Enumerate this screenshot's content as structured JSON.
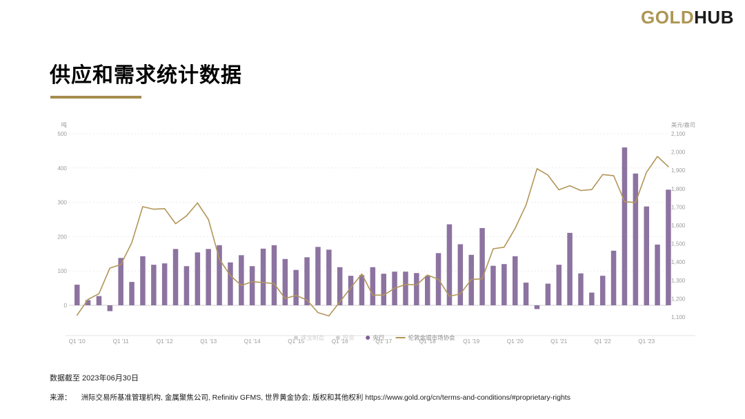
{
  "header": {
    "logo_gold": "GOLD",
    "logo_black": "HUB"
  },
  "title": "供应和需求统计数据",
  "footer": {
    "data_as_of": "数据截至 2023年06月30日",
    "source_label": "来源：",
    "source_text": "洲际交易所基准管理机构, 金属聚焦公司, Refinitiv GFMS, 世界黄金协会; 版权和其他权利 https://www.gold.org/cn/terms-and-conditions/#proprietary-rights"
  },
  "chart_data": {
    "type": "bar+line",
    "x_tick_labels": [
      {
        "index": 0,
        "label": "Q1 '10"
      },
      {
        "index": 4,
        "label": "Q1 '11"
      },
      {
        "index": 8,
        "label": "Q1 '12"
      },
      {
        "index": 12,
        "label": "Q1 '13"
      },
      {
        "index": 16,
        "label": "Q1 '14"
      },
      {
        "index": 20,
        "label": "Q1 '15"
      },
      {
        "index": 24,
        "label": "Q1 '16"
      },
      {
        "index": 28,
        "label": "Q1 '17"
      },
      {
        "index": 32,
        "label": "Q1 '18"
      },
      {
        "index": 36,
        "label": "Q1 '19"
      },
      {
        "index": 40,
        "label": "Q1 '20"
      },
      {
        "index": 44,
        "label": "Q1 '21"
      },
      {
        "index": 48,
        "label": "Q1 '22"
      },
      {
        "index": 52,
        "label": "Q1 '23"
      }
    ],
    "bar_series": {
      "name": "央行",
      "unit": "吨",
      "color": "#8C73A0",
      "values": [
        60,
        15,
        27,
        -17,
        138,
        68,
        143,
        118,
        122,
        164,
        114,
        154,
        164,
        175,
        125,
        146,
        114,
        165,
        175,
        135,
        103,
        140,
        170,
        162,
        111,
        86,
        88,
        111,
        92,
        98,
        98,
        94,
        86,
        152,
        236,
        178,
        147,
        225,
        115,
        120,
        143,
        66,
        -11,
        63,
        118,
        211,
        93,
        37,
        86,
        159,
        460,
        384,
        288,
        177,
        337
      ]
    },
    "line_series": {
      "name": "伦敦金银市场协会",
      "unit": "美元/盎司",
      "color": "#B29558",
      "values": [
        1110,
        1196,
        1227,
        1367,
        1386,
        1506,
        1702,
        1688,
        1691,
        1609,
        1652,
        1722,
        1632,
        1415,
        1326,
        1272,
        1293,
        1288,
        1282,
        1201,
        1218,
        1192,
        1124,
        1106,
        1183,
        1260,
        1335,
        1220,
        1219,
        1257,
        1278,
        1275,
        1329,
        1306,
        1213,
        1226,
        1304,
        1309,
        1472,
        1481,
        1583,
        1711,
        1909,
        1874,
        1794,
        1816,
        1790,
        1795,
        1877,
        1871,
        1729,
        1725,
        1890,
        1976,
        1920
      ]
    },
    "left_axis": {
      "title": "吨",
      "ticks": [
        0,
        100,
        200,
        300,
        400,
        500
      ],
      "range": [
        0,
        500
      ]
    },
    "right_axis": {
      "title": "美元/盎司",
      "ticks": [
        1100,
        1200,
        1300,
        1400,
        1500,
        1600,
        1700,
        1800,
        1900,
        2000,
        2100
      ],
      "range": [
        1100,
        2100
      ]
    },
    "legend": [
      {
        "label": "珠宝制造",
        "marker": "dot",
        "color": "#d2d2d2",
        "text_color": "#d2d2d2",
        "state": "disabled"
      },
      {
        "label": "投资",
        "marker": "dot",
        "color": "#d2d2d2",
        "text_color": "#d2d2d2",
        "state": "disabled"
      },
      {
        "label": "央行",
        "marker": "dot",
        "color": "#7E5F99",
        "text_color": "#8f8f8f",
        "state": "active"
      },
      {
        "label": "伦敦金银市场协会",
        "marker": "line",
        "color": "#B29558",
        "text_color": "#8f8f8f",
        "state": "active"
      }
    ]
  }
}
